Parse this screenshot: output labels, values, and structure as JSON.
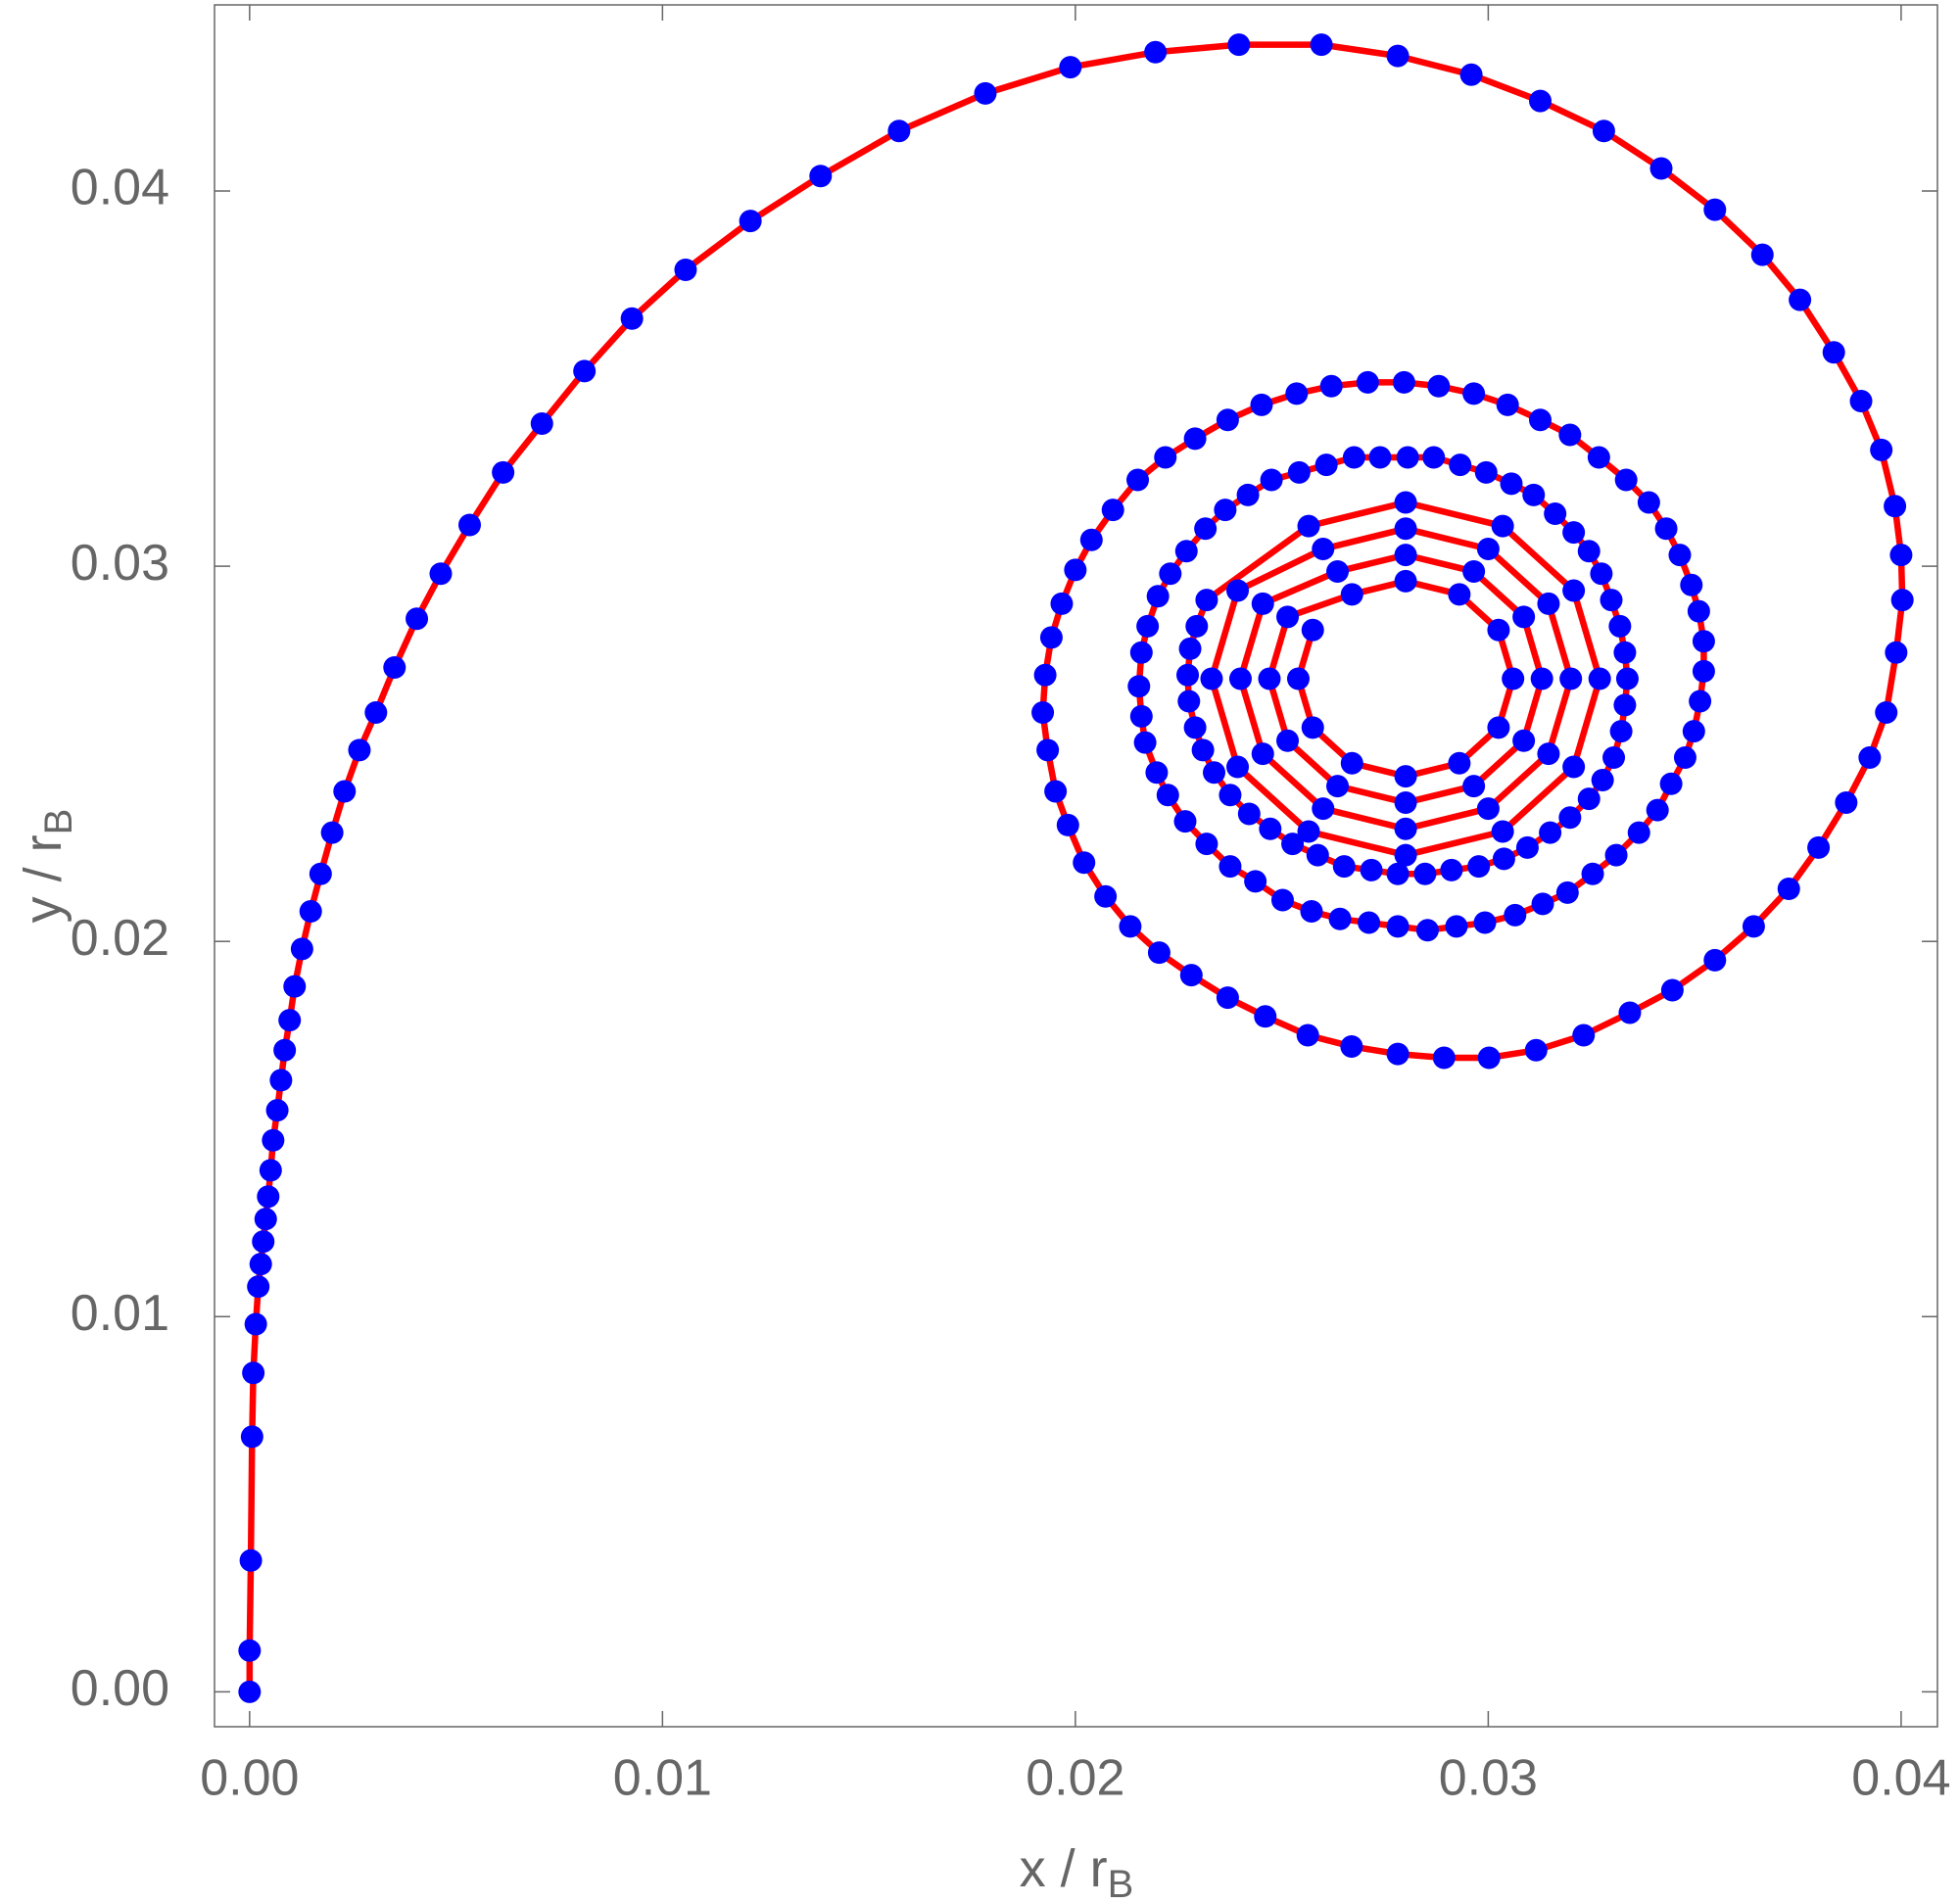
{
  "chart_data": {
    "type": "scatter",
    "x_label": "x / r",
    "x_label_subscript": "B",
    "y_label": "y / r",
    "y_label_subscript": "B",
    "line_color": "#ff0000",
    "marker_color": "#0000ff",
    "xlim": [
      -0.00085,
      0.04088
    ],
    "ylim": [
      -0.00093,
      0.04496
    ],
    "xticks": [
      {
        "value": 0,
        "label": "0.00"
      },
      0.01,
      0.02,
      0.03,
      0.04
    ],
    "yticks": [
      {
        "value": 0,
        "label": "0.00"
      },
      0.01,
      0.02,
      0.03,
      0.04
    ],
    "x": [
      0,
      0,
      3e-05,
      6e-05,
      9e-05,
      0.00015,
      0.00021,
      0.00027,
      0.00033,
      0.00039,
      0.00045,
      0.00051,
      0.00057,
      0.00067,
      0.00076,
      0.00085,
      0.00097,
      0.00109,
      0.00127,
      0.00148,
      0.00172,
      0.002,
      0.0023,
      0.00266,
      0.00306,
      0.00351,
      0.00405,
      0.00463,
      0.00533,
      0.00614,
      0.00708,
      0.00811,
      0.00926,
      0.01056,
      0.01213,
      0.01383,
      0.01573,
      0.01782,
      0.01988,
      0.02194,
      0.02396,
      0.02596,
      0.02781,
      0.02959,
      0.03126,
      0.0328,
      0.03419,
      0.03549,
      0.03664,
      0.03755,
      0.03837,
      0.03903,
      0.03952,
      0.03985,
      0.04,
      0.04003,
      0.03988,
      0.03964,
      0.03924,
      0.03867,
      0.038,
      0.03728,
      0.03643,
      0.03549,
      0.03446,
      0.03343,
      0.03231,
      0.03116,
      0.03002,
      0.02893,
      0.02781,
      0.02669,
      0.02563,
      0.0246,
      0.02369,
      0.02281,
      0.02203,
      0.02133,
      0.02073,
      0.02021,
      0.01982,
      0.01952,
      0.01933,
      0.01921,
      0.01927,
      0.01942,
      0.01967,
      0.02,
      0.02039,
      0.02091,
      0.02151,
      0.02218,
      0.0229,
      0.02369,
      0.02451,
      0.02536,
      0.0262,
      0.02708,
      0.02796,
      0.0288,
      0.02965,
      0.03047,
      0.03126,
      0.03198,
      0.03268,
      0.03334,
      0.03389,
      0.03431,
      0.03464,
      0.03492,
      0.0351,
      0.03522,
      0.03522,
      0.03513,
      0.03498,
      0.03477,
      0.03443,
      0.0341,
      0.03365,
      0.0331,
      0.03253,
      0.03192,
      0.03132,
      0.03065,
      0.02992,
      0.02923,
      0.02853,
      0.02781,
      0.02711,
      0.02641,
      0.02572,
      0.02502,
      0.02436,
      0.02375,
      0.02318,
      0.02266,
      0.02224,
      0.02197,
      0.02169,
      0.0216,
      0.02154,
      0.0216,
      0.02175,
      0.022,
      0.0223,
      0.02269,
      0.02315,
      0.02363,
      0.02418,
      0.02475,
      0.02542,
      0.02608,
      0.02675,
      0.02738,
      0.02805,
      0.02868,
      0.02932,
      0.02995,
      0.03056,
      0.0311,
      0.03162,
      0.03207,
      0.03244,
      0.03274,
      0.03298,
      0.03319,
      0.03331,
      0.03337,
      0.03331,
      0.03322,
      0.03304,
      0.03277,
      0.03244,
      0.03198,
      0.0315,
      0.03095,
      0.03038,
      0.02977,
      0.02911,
      0.02847,
      0.02781,
      0.02717,
      0.02651,
      0.02587,
      0.02526,
      0.02472,
      0.02421,
      0.02375,
      0.02336,
      0.02309,
      0.0229,
      0.02275,
      0.02272,
      0.02278,
      0.02294,
      0.02318,
      0.02565,
      0.028,
      0.03035,
      0.03207,
      0.0327,
      0.03207,
      0.03035,
      0.028,
      0.02565,
      0.02393,
      0.0233,
      0.02393,
      0.026,
      0.028,
      0.03,
      0.03146,
      0.032,
      0.03146,
      0.03,
      0.028,
      0.026,
      0.02454,
      0.024,
      0.02454,
      0.02635,
      0.028,
      0.02965,
      0.03086,
      0.0313,
      0.03086,
      0.02965,
      0.028,
      0.02635,
      0.02514,
      0.0247,
      0.02514,
      0.0267,
      0.028,
      0.0293,
      0.03025,
      0.0306,
      0.03025,
      0.0293,
      0.028,
      0.0267,
      0.02575,
      0.0254,
      0.02575
    ],
    "y": [
      0,
      0.0011,
      0.0035,
      0.0068,
      0.0085,
      0.0098,
      0.0108,
      0.0114,
      0.012,
      0.0126,
      0.0132,
      0.0139,
      0.0147,
      0.0155,
      0.0163,
      0.0171,
      0.0179,
      0.0188,
      0.0198,
      0.0208,
      0.0218,
      0.0229,
      0.024,
      0.0251,
      0.0261,
      0.0273,
      0.0286,
      0.0298,
      0.0311,
      0.0325,
      0.0338,
      0.0352,
      0.0366,
      0.0379,
      0.0392,
      0.0404,
      0.0416,
      0.0426,
      0.0433,
      0.0437,
      0.0439,
      0.0439,
      0.0436,
      0.0431,
      0.0424,
      0.0416,
      0.0406,
      0.0395,
      0.0383,
      0.0371,
      0.0357,
      0.0344,
      0.0331,
      0.0316,
      0.0303,
      0.0291,
      0.0277,
      0.0261,
      0.0249,
      0.0237,
      0.0225,
      0.0214,
      0.0204,
      0.0195,
      0.0187,
      0.0181,
      0.0175,
      0.0171,
      0.0169,
      0.0169,
      0.017,
      0.0172,
      0.0175,
      0.018,
      0.0185,
      0.0191,
      0.0197,
      0.0204,
      0.0212,
      0.0221,
      0.0231,
      0.024,
      0.0251,
      0.0261,
      0.0271,
      0.0281,
      0.029,
      0.0299,
      0.0307,
      0.0315,
      0.0323,
      0.0329,
      0.0334,
      0.0339,
      0.0343,
      0.0346,
      0.0348,
      0.0349,
      0.0349,
      0.0348,
      0.0346,
      0.0343,
      0.0339,
      0.0335,
      0.0329,
      0.0323,
      0.0317,
      0.031,
      0.0303,
      0.0295,
      0.0288,
      0.028,
      0.0272,
      0.0264,
      0.0256,
      0.0249,
      0.0242,
      0.0235,
      0.0229,
      0.0223,
      0.0218,
      0.0213,
      0.021,
      0.0207,
      0.0205,
      0.0204,
      0.0203,
      0.0204,
      0.0205,
      0.0206,
      0.0208,
      0.0211,
      0.0216,
      0.022,
      0.0226,
      0.0232,
      0.0239,
      0.0245,
      0.0253,
      0.026,
      0.0268,
      0.0277,
      0.0284,
      0.0292,
      0.0298,
      0.0304,
      0.031,
      0.0315,
      0.0319,
      0.0323,
      0.0325,
      0.0327,
      0.0329,
      0.0329,
      0.0329,
      0.0329,
      0.0327,
      0.0325,
      0.0322,
      0.0319,
      0.0314,
      0.0309,
      0.0304,
      0.0298,
      0.0291,
      0.0284,
      0.0277,
      0.027,
      0.0263,
      0.0256,
      0.0249,
      0.0243,
      0.0238,
      0.0233,
      0.0229,
      0.0225,
      0.0222,
      0.022,
      0.0219,
      0.0218,
      0.0218,
      0.0219,
      0.022,
      0.0223,
      0.0226,
      0.023,
      0.0234,
      0.0239,
      0.0245,
      0.0251,
      0.0257,
      0.0264,
      0.0271,
      0.0278,
      0.0284,
      0.0291,
      0.03107,
      0.0317,
      0.03107,
      0.02935,
      0.027,
      0.02465,
      0.02293,
      0.0223,
      0.02293,
      0.02465,
      0.027,
      0.02935,
      0.03046,
      0.031,
      0.03046,
      0.029,
      0.027,
      0.025,
      0.02354,
      0.023,
      0.02354,
      0.025,
      0.027,
      0.029,
      0.02986,
      0.0303,
      0.02986,
      0.02865,
      0.027,
      0.02535,
      0.02414,
      0.0237,
      0.02414,
      0.02535,
      0.027,
      0.02865,
      0.02925,
      0.0296,
      0.02925,
      0.0283,
      0.027,
      0.0257,
      0.02475,
      0.0244,
      0.02475,
      0.0257,
      0.027,
      0.0283
    ]
  }
}
